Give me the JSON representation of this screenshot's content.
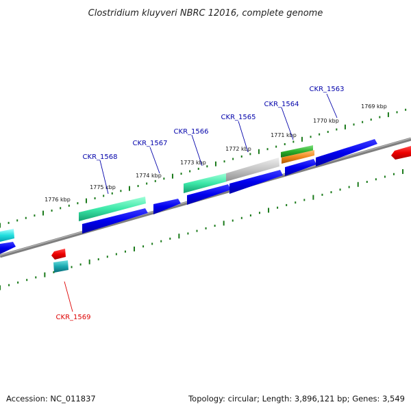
{
  "title": "Clostridium kluyveri NBRC 12016, complete genome",
  "footer": {
    "accession": "Accession: NC_011837",
    "summary": "Topology: circular; Length: 3,896,121 bp; Genes: 3,549"
  },
  "colors": {
    "backbone": "#7f7f7f",
    "tick": "#1a7a1a",
    "forward_cds": "#0000ee",
    "reverse_cds": "#ee0000",
    "label_forward": "#0000aa",
    "label_reverse": "#dd0000"
  },
  "scale_labels": [
    "1769 kbp",
    "1770 kbp",
    "1771 kbp",
    "1772 kbp",
    "1773 kbp",
    "1774 kbp",
    "1775 kbp",
    "1776 kbp"
  ],
  "gene_labels": [
    {
      "name": "CKR_1563",
      "strand": "forward"
    },
    {
      "name": "CKR_1564",
      "strand": "forward"
    },
    {
      "name": "CKR_1565",
      "strand": "forward"
    },
    {
      "name": "CKR_1566",
      "strand": "forward"
    },
    {
      "name": "CKR_1567",
      "strand": "forward"
    },
    {
      "name": "CKR_1568",
      "strand": "forward"
    },
    {
      "name": "CKR_1569",
      "strand": "reverse"
    }
  ]
}
